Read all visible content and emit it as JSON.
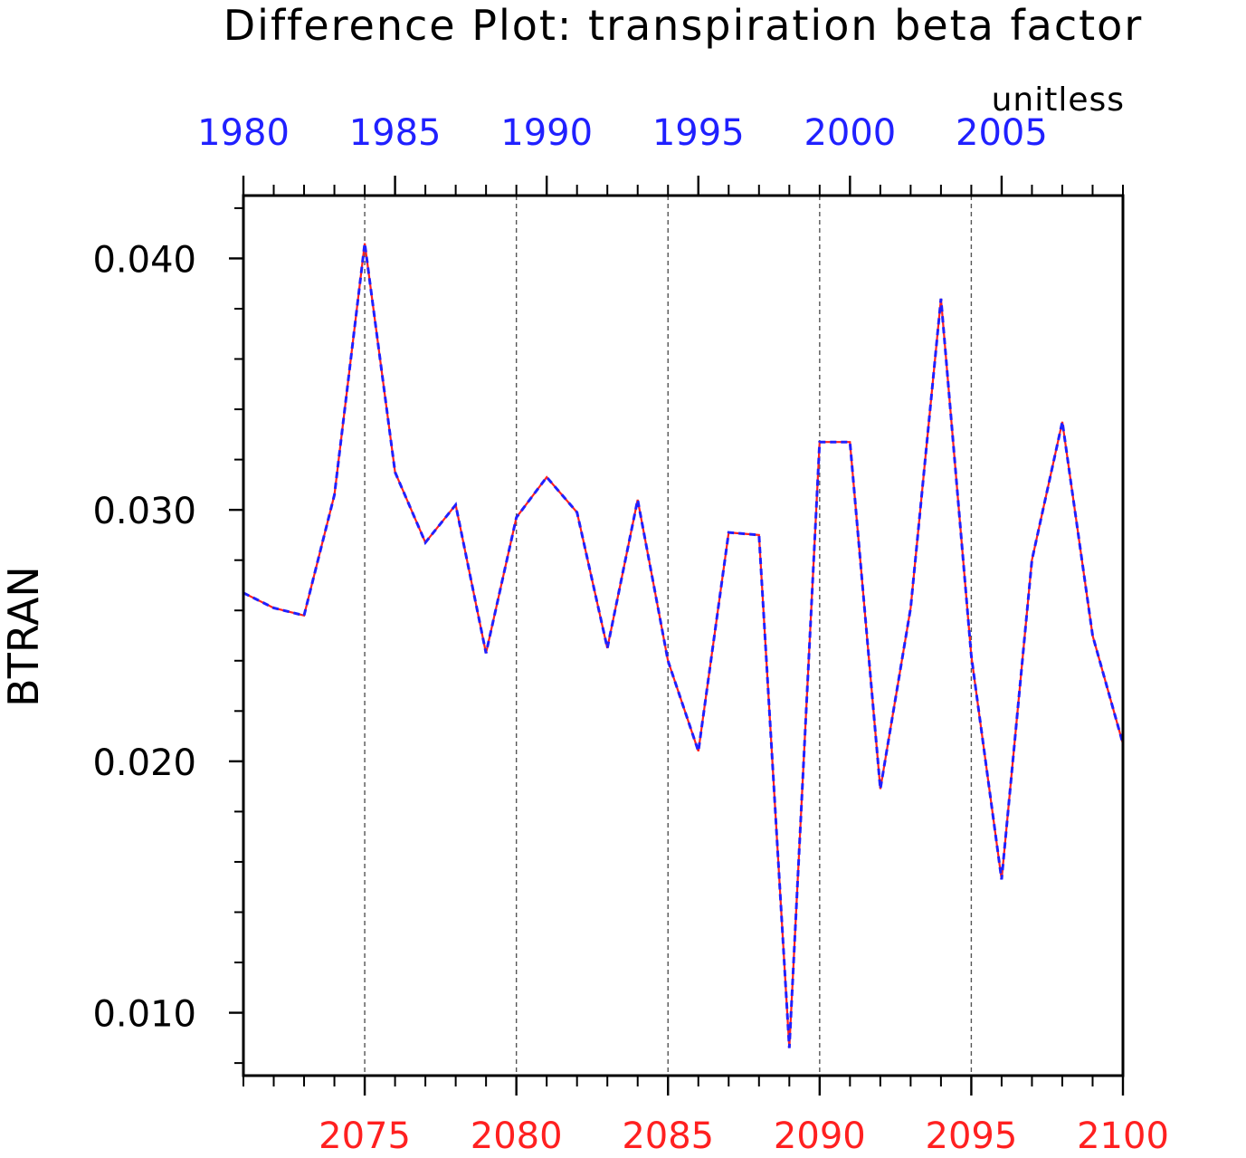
{
  "chart_data": {
    "type": "line",
    "title": "Difference Plot: transpiration beta factor",
    "units": "unitless",
    "ylabel": "BTRAN",
    "ylim": [
      0.0075,
      0.0425
    ],
    "y_ticks": [
      "0.010",
      "0.020",
      "0.030",
      "0.040"
    ],
    "y_tick_values": [
      0.01,
      0.02,
      0.03,
      0.04
    ],
    "grid": "vertical dashed lines at labeled x ticks",
    "x_bottom": {
      "color": "#ff2020",
      "xlim": [
        2071,
        2100
      ],
      "tick_labels": [
        "2075",
        "2080",
        "2085",
        "2090",
        "2095",
        "2100"
      ],
      "tick_values": [
        2075,
        2080,
        2085,
        2090,
        2095,
        2100
      ]
    },
    "x_top": {
      "color": "#2020ff",
      "xlim": [
        1980,
        2009
      ],
      "tick_labels": [
        "1980",
        "1985",
        "1990",
        "1995",
        "2000",
        "2005"
      ],
      "tick_values": [
        1980,
        1985,
        1990,
        1995,
        2000,
        2005
      ]
    },
    "x": [
      2071,
      2072,
      2073,
      2074,
      2075,
      2076,
      2077,
      2078,
      2079,
      2080,
      2081,
      2082,
      2083,
      2084,
      2085,
      2086,
      2087,
      2088,
      2089,
      2090,
      2091,
      2092,
      2093,
      2094,
      2095,
      2096,
      2097,
      2098,
      2099,
      2100
    ],
    "series": [
      {
        "color": "#ff2020",
        "style": "solid",
        "values": [
          0.0267,
          0.0261,
          0.0258,
          0.0306,
          0.0406,
          0.0315,
          0.0287,
          0.0302,
          0.0243,
          0.0297,
          0.0313,
          0.0299,
          0.0245,
          0.0304,
          0.024,
          0.0204,
          0.0291,
          0.029,
          0.0086,
          0.0327,
          0.0327,
          0.0189,
          0.0261,
          0.0384,
          0.0242,
          0.0153,
          0.028,
          0.0335,
          0.025,
          0.0207
        ]
      },
      {
        "color": "#2020ff",
        "style": "dashed",
        "values": [
          0.0267,
          0.0261,
          0.0258,
          0.0306,
          0.0406,
          0.0315,
          0.0287,
          0.0302,
          0.0243,
          0.0297,
          0.0313,
          0.0299,
          0.0245,
          0.0304,
          0.024,
          0.0204,
          0.0291,
          0.029,
          0.0086,
          0.0327,
          0.0327,
          0.0189,
          0.0261,
          0.0384,
          0.0242,
          0.0153,
          0.028,
          0.0335,
          0.025,
          0.0207
        ]
      }
    ]
  }
}
